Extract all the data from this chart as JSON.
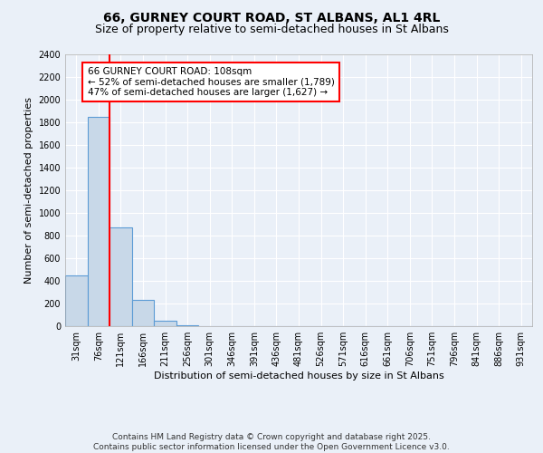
{
  "title_line1": "66, GURNEY COURT ROAD, ST ALBANS, AL1 4RL",
  "title_line2": "Size of property relative to semi-detached houses in St Albans",
  "xlabel": "Distribution of semi-detached houses by size in St Albans",
  "ylabel": "Number of semi-detached properties",
  "categories": [
    "31sqm",
    "76sqm",
    "121sqm",
    "166sqm",
    "211sqm",
    "256sqm",
    "301sqm",
    "346sqm",
    "391sqm",
    "436sqm",
    "481sqm",
    "526sqm",
    "571sqm",
    "616sqm",
    "661sqm",
    "706sqm",
    "751sqm",
    "796sqm",
    "841sqm",
    "886sqm",
    "931sqm"
  ],
  "values": [
    450,
    1845,
    870,
    235,
    50,
    10,
    0,
    0,
    0,
    0,
    0,
    0,
    0,
    0,
    0,
    0,
    0,
    0,
    0,
    0,
    0
  ],
  "bar_color": "#c8d8e8",
  "bar_edge_color": "#5b9bd5",
  "red_line_x": 1.5,
  "annotation_text": "66 GURNEY COURT ROAD: 108sqm\n← 52% of semi-detached houses are smaller (1,789)\n47% of semi-detached houses are larger (1,627) →",
  "annotation_box_color": "white",
  "annotation_box_edge_color": "red",
  "ylim": [
    0,
    2400
  ],
  "yticks": [
    0,
    200,
    400,
    600,
    800,
    1000,
    1200,
    1400,
    1600,
    1800,
    2000,
    2200,
    2400
  ],
  "background_color": "#eaf0f8",
  "grid_color": "#ffffff",
  "footer_line1": "Contains HM Land Registry data © Crown copyright and database right 2025.",
  "footer_line2": "Contains public sector information licensed under the Open Government Licence v3.0.",
  "title_fontsize": 10,
  "subtitle_fontsize": 9,
  "axis_label_fontsize": 8,
  "tick_fontsize": 7,
  "annotation_fontsize": 7.5,
  "footer_fontsize": 6.5
}
